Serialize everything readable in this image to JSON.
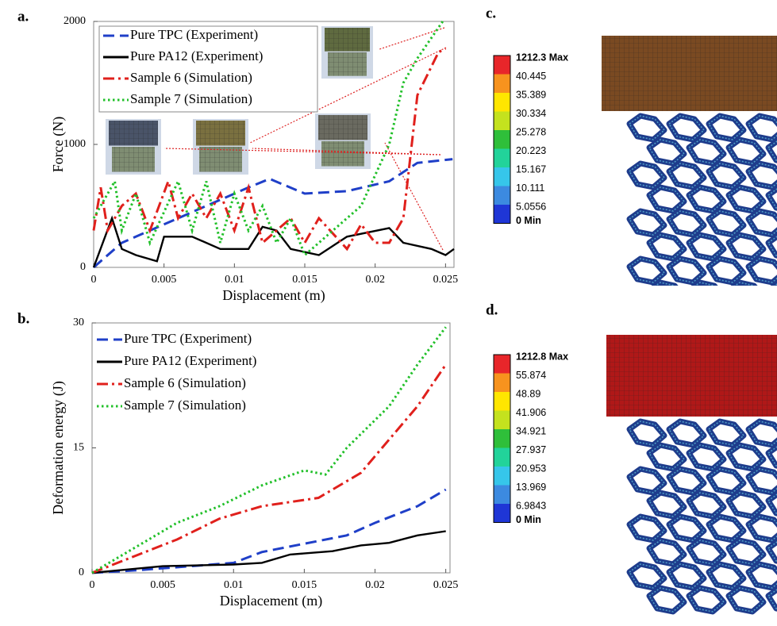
{
  "chart_data": [
    {
      "type": "line",
      "label": "a.",
      "xlabel": "Displacement (m)",
      "ylabel": "Force (N)",
      "xlim": [
        0,
        0.0256
      ],
      "xticks": [
        0,
        0.005,
        0.01,
        0.015,
        0.02,
        0.025
      ],
      "ylim": [
        0,
        2000
      ],
      "yticks": [
        0,
        1000,
        2000
      ],
      "legend": "upper left",
      "legend_box": true,
      "series": [
        {
          "name": "Pure TPC (Experiment)",
          "color": "#1f3fc8",
          "dash": "dashed",
          "x": [
            0,
            0.002,
            0.005,
            0.008,
            0.011,
            0.0125,
            0.015,
            0.018,
            0.021,
            0.023,
            0.0255
          ],
          "values": [
            0,
            200,
            350,
            500,
            650,
            720,
            600,
            620,
            700,
            850,
            880
          ]
        },
        {
          "name": "Pure PA12 (Experiment)",
          "color": "#000000",
          "dash": "solid",
          "x": [
            0,
            0.0013,
            0.002,
            0.003,
            0.0045,
            0.005,
            0.007,
            0.009,
            0.011,
            0.012,
            0.013,
            0.014,
            0.016,
            0.018,
            0.021,
            0.022,
            0.024,
            0.025,
            0.0256
          ],
          "values": [
            0,
            400,
            150,
            100,
            50,
            250,
            250,
            150,
            150,
            330,
            300,
            150,
            100,
            250,
            320,
            200,
            150,
            100,
            150
          ]
        },
        {
          "name": "Sample 6 (Simulation)",
          "color": "#e0201c",
          "dash": "dashdot",
          "x": [
            0,
            0.0005,
            0.001,
            0.002,
            0.003,
            0.004,
            0.0053,
            0.006,
            0.007,
            0.008,
            0.009,
            0.01,
            0.011,
            0.012,
            0.014,
            0.015,
            0.016,
            0.018,
            0.019,
            0.02,
            0.021,
            0.022,
            0.023,
            0.0245,
            0.025
          ],
          "values": [
            300,
            650,
            300,
            500,
            600,
            300,
            700,
            400,
            600,
            400,
            600,
            300,
            650,
            200,
            400,
            200,
            400,
            150,
            350,
            200,
            200,
            400,
            1400,
            1750,
            1780
          ]
        },
        {
          "name": "Sample 7 (Simulation)",
          "color": "#22c02a",
          "dash": "dotted",
          "x": [
            0,
            0.0015,
            0.002,
            0.003,
            0.004,
            0.006,
            0.007,
            0.008,
            0.009,
            0.01,
            0.011,
            0.012,
            0.013,
            0.014,
            0.015,
            0.016,
            0.017,
            0.019,
            0.021,
            0.022,
            0.023,
            0.0248
          ],
          "values": [
            400,
            700,
            300,
            600,
            200,
            700,
            300,
            700,
            200,
            600,
            300,
            500,
            200,
            400,
            100,
            200,
            300,
            500,
            1000,
            1500,
            1700,
            2000
          ]
        }
      ]
    },
    {
      "type": "line",
      "label": "b.",
      "xlabel": "Displacement (m)",
      "ylabel": "Deformation energy (J)",
      "xlim": [
        0,
        0.0253
      ],
      "xticks": [
        0,
        0.005,
        0.01,
        0.015,
        0.02,
        0.025
      ],
      "ylim": [
        0,
        30
      ],
      "yticks": [
        0,
        15,
        30
      ],
      "legend": "upper left",
      "legend_box": false,
      "series": [
        {
          "name": "Pure TPC (Experiment)",
          "color": "#1f3fc8",
          "dash": "dashed",
          "x": [
            0,
            0.003,
            0.007,
            0.01,
            0.012,
            0.015,
            0.018,
            0.02,
            0.023,
            0.025
          ],
          "values": [
            0,
            0.3,
            0.8,
            1.2,
            2.5,
            3.5,
            4.5,
            6,
            8,
            10
          ]
        },
        {
          "name": "Pure PA12 (Experiment)",
          "color": "#000000",
          "dash": "solid",
          "x": [
            0,
            0.005,
            0.01,
            0.012,
            0.014,
            0.017,
            0.019,
            0.021,
            0.023,
            0.025
          ],
          "values": [
            0,
            0.8,
            1,
            1.2,
            2.2,
            2.6,
            3.3,
            3.6,
            4.5,
            5
          ]
        },
        {
          "name": "Sample 6 (Simulation)",
          "color": "#e0201c",
          "dash": "dashdot",
          "x": [
            0,
            0.003,
            0.006,
            0.009,
            0.012,
            0.016,
            0.019,
            0.021,
            0.023,
            0.025
          ],
          "values": [
            0,
            2,
            4,
            6.5,
            8,
            9,
            12,
            16,
            20,
            25
          ]
        },
        {
          "name": "Sample 7 (Simulation)",
          "color": "#22c02a",
          "dash": "dotted",
          "x": [
            0,
            0.003,
            0.006,
            0.009,
            0.012,
            0.015,
            0.0165,
            0.018,
            0.021,
            0.023,
            0.025
          ],
          "values": [
            0,
            3,
            6,
            8,
            10.5,
            12.3,
            11.8,
            15,
            20,
            25,
            29.5
          ]
        }
      ]
    }
  ],
  "contours": [
    {
      "label": "c.",
      "max": "1212.3 Max",
      "levels": [
        40.445,
        35.389,
        30.334,
        25.278,
        20.223,
        15.167,
        10.111,
        5.0556
      ],
      "min": "0 Min",
      "colors": [
        "#e8262a",
        "#f7931e",
        "#ffe600",
        "#c4e21e",
        "#2fbf3a",
        "#22d39a",
        "#36c6ea",
        "#3c8ae0",
        "#1f36d6"
      ]
    },
    {
      "label": "d.",
      "max": "1212.8 Max",
      "levels": [
        55.874,
        48.89,
        41.906,
        34.921,
        27.937,
        20.953,
        13.969,
        6.9843
      ],
      "min": "0 Min",
      "colors": [
        "#e8262a",
        "#f7931e",
        "#ffe600",
        "#c4e21e",
        "#2fbf3a",
        "#22d39a",
        "#36c6ea",
        "#3c8ae0",
        "#1f36d6"
      ]
    }
  ]
}
